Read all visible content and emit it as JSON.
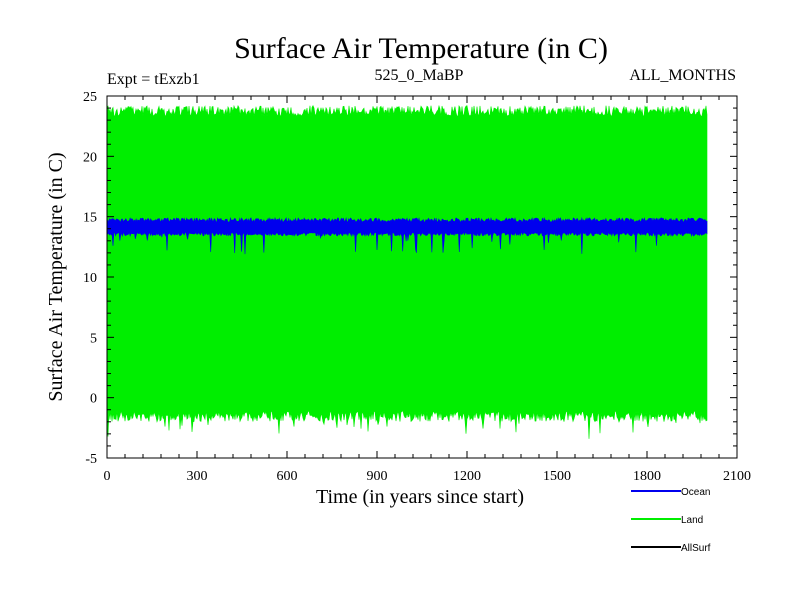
{
  "chart_data": {
    "type": "line",
    "title": "Surface Air Temperature (in C)",
    "subtitle_left": "Expt = tExzb1",
    "subtitle_center": "525_0_MaBP",
    "subtitle_right": "ALL_MONTHS",
    "xlabel": "Time (in years since start)",
    "ylabel": "Surface Air Temperature (in C)",
    "xlim": [
      0,
      2100
    ],
    "ylim": [
      -5,
      25
    ],
    "x_ticks": [
      0,
      300,
      600,
      900,
      1200,
      1500,
      1800,
      2100
    ],
    "x_tick_labels": [
      "0",
      "300",
      "600",
      "900",
      "1200",
      "1500",
      "1800",
      "2100"
    ],
    "y_ticks": [
      -5,
      0,
      5,
      10,
      15,
      20,
      25
    ],
    "y_tick_labels": [
      "-5",
      "0",
      "5",
      "10",
      "15",
      "20",
      "25"
    ],
    "x_range": [
      0,
      2000
    ],
    "series": [
      {
        "name": "Land",
        "color": "#00ee00",
        "envelope_high": 24.2,
        "envelope_low": -2.0,
        "mean": 11.1
      },
      {
        "name": "Ocean",
        "color": "#0000ee",
        "envelope_high": 14.9,
        "envelope_low": 13.4,
        "mean": 14.15
      },
      {
        "name": "AllSurf",
        "color": "#000000"
      }
    ],
    "legend": [
      {
        "label": "Ocean",
        "color": "#0000ee"
      },
      {
        "label": "Land",
        "color": "#00ee00"
      },
      {
        "label": "AllSurf",
        "color": "#000000"
      }
    ],
    "legend_position": "bottom-right"
  }
}
